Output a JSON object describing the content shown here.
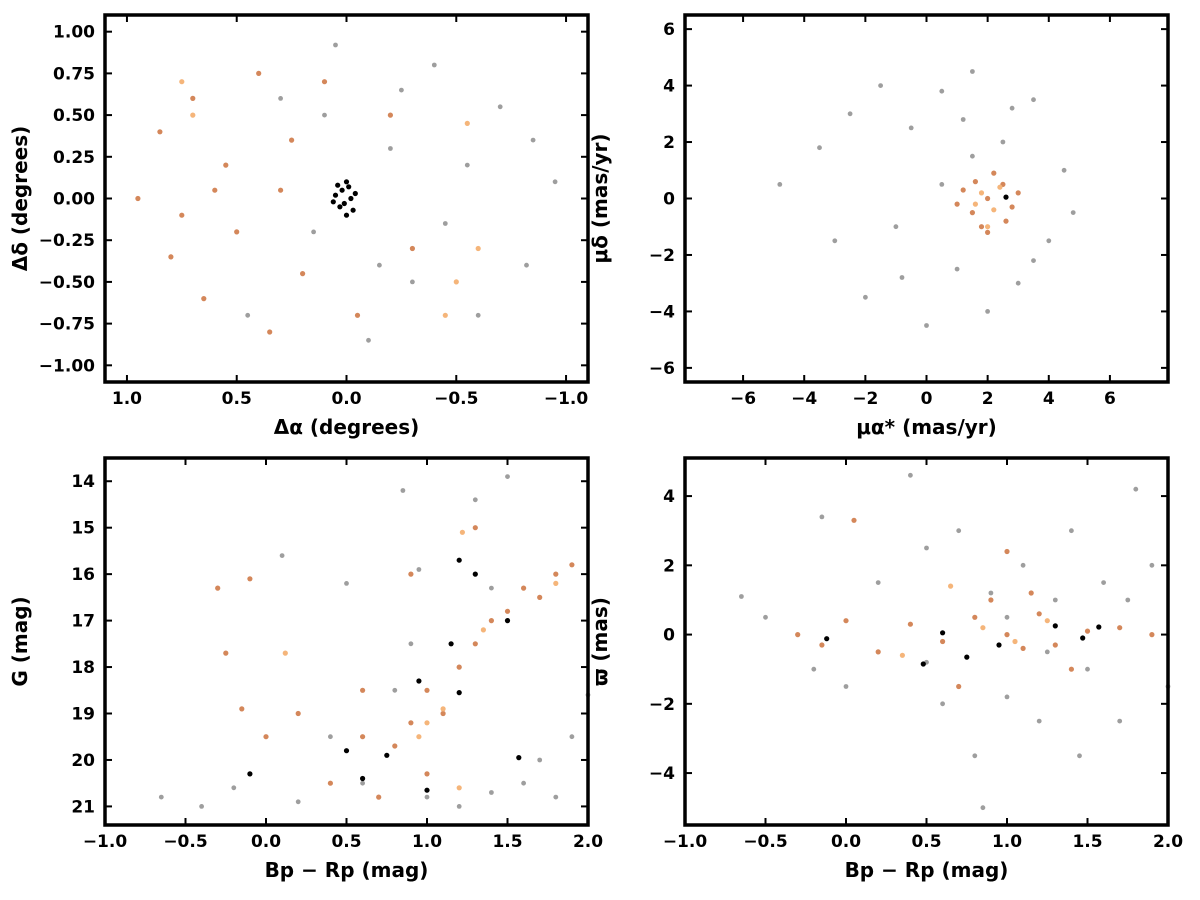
{
  "colors": {
    "field": "#9e9e9e",
    "member": "#d4875a",
    "member_light": "#f5b57a",
    "core": "#000000"
  },
  "chart_data": [
    {
      "type": "scatter",
      "xlabel": "Δα (degrees)",
      "ylabel": "Δδ (degrees)",
      "xlim": [
        1.1,
        -1.1
      ],
      "ylim": [
        -1.1,
        1.1
      ],
      "x_inverted": true,
      "xticks": [
        1.0,
        0.5,
        0.0,
        -0.5,
        -1.0
      ],
      "xtick_labels": [
        "1.0",
        "0.5",
        "0.0",
        "−0.5",
        "−1.0"
      ],
      "yticks": [
        1.0,
        0.75,
        0.5,
        0.25,
        0.0,
        -0.25,
        -0.5,
        -0.75,
        -1.0
      ],
      "ytick_labels": [
        "1.00",
        "0.75",
        "0.50",
        "0.25",
        "0.00",
        "−0.25",
        "−0.50",
        "−0.75",
        "−1.00"
      ],
      "series": [
        {
          "role": "field",
          "points": [
            [
              -0.95,
              0.1
            ],
            [
              -0.82,
              -0.4
            ],
            [
              -0.7,
              0.55
            ],
            [
              -0.6,
              -0.7
            ],
            [
              -0.4,
              0.8
            ],
            [
              -0.3,
              -0.5
            ],
            [
              -0.2,
              0.3
            ],
            [
              -0.1,
              -0.85
            ],
            [
              0.05,
              0.92
            ],
            [
              0.15,
              -0.2
            ],
            [
              0.3,
              0.6
            ],
            [
              0.45,
              -0.7
            ],
            [
              -0.85,
              0.35
            ],
            [
              -0.55,
              0.2
            ],
            [
              -0.45,
              -0.15
            ],
            [
              -0.25,
              0.65
            ],
            [
              0.1,
              0.5
            ],
            [
              -0.15,
              -0.4
            ]
          ]
        },
        {
          "role": "member",
          "points": [
            [
              0.95,
              0.0
            ],
            [
              0.85,
              0.4
            ],
            [
              0.8,
              -0.35
            ],
            [
              0.7,
              0.6
            ],
            [
              0.65,
              -0.6
            ],
            [
              0.55,
              0.2
            ],
            [
              0.5,
              -0.2
            ],
            [
              0.4,
              0.75
            ],
            [
              0.35,
              -0.8
            ],
            [
              0.25,
              0.35
            ],
            [
              0.2,
              -0.45
            ],
            [
              0.1,
              0.7
            ],
            [
              -0.05,
              -0.7
            ],
            [
              -0.2,
              0.5
            ],
            [
              -0.3,
              -0.3
            ],
            [
              0.6,
              0.05
            ],
            [
              0.75,
              -0.1
            ],
            [
              0.3,
              0.05
            ]
          ]
        },
        {
          "role": "member_light",
          "points": [
            [
              0.7,
              0.5
            ],
            [
              -0.55,
              0.45
            ],
            [
              -0.5,
              -0.5
            ],
            [
              -0.6,
              -0.3
            ],
            [
              -0.45,
              -0.7
            ],
            [
              0.75,
              0.7
            ]
          ]
        },
        {
          "role": "core",
          "points": [
            [
              0.0,
              0.1
            ],
            [
              0.02,
              0.05
            ],
            [
              -0.02,
              0.0
            ],
            [
              0.03,
              -0.05
            ],
            [
              0.0,
              -0.1
            ],
            [
              0.05,
              0.02
            ],
            [
              -0.03,
              -0.07
            ],
            [
              0.04,
              0.08
            ],
            [
              -0.04,
              0.03
            ],
            [
              0.01,
              -0.03
            ],
            [
              0.06,
              -0.02
            ],
            [
              -0.01,
              0.07
            ]
          ]
        }
      ]
    },
    {
      "type": "scatter",
      "xlabel": "μα* (mas/yr)",
      "ylabel": "μδ (mas/yr)",
      "xlim": [
        -7.9,
        7.9
      ],
      "ylim": [
        -6.5,
        6.5
      ],
      "xticks": [
        -6,
        -4,
        -2,
        0,
        2,
        4,
        6
      ],
      "xtick_labels": [
        "−6",
        "−4",
        "−2",
        "0",
        "2",
        "4",
        "6"
      ],
      "yticks": [
        6,
        4,
        2,
        0,
        -2,
        -4,
        -6
      ],
      "ytick_labels": [
        "6",
        "4",
        "2",
        "0",
        "−2",
        "−4",
        "−6"
      ],
      "series": [
        {
          "role": "field",
          "points": [
            [
              -4.8,
              0.5
            ],
            [
              -3.5,
              1.8
            ],
            [
              -3.0,
              -1.5
            ],
            [
              -2.5,
              3.0
            ],
            [
              -2.0,
              -3.5
            ],
            [
              -1.5,
              4.0
            ],
            [
              -1.0,
              -1.0
            ],
            [
              -0.5,
              2.5
            ],
            [
              0.0,
              -4.5
            ],
            [
              0.5,
              3.8
            ],
            [
              1.0,
              -2.5
            ],
            [
              1.5,
              4.5
            ],
            [
              2.0,
              -4.0
            ],
            [
              2.5,
              2.0
            ],
            [
              3.0,
              -3.0
            ],
            [
              3.5,
              3.5
            ],
            [
              4.0,
              -1.5
            ],
            [
              4.5,
              1.0
            ],
            [
              4.8,
              -0.5
            ],
            [
              0.5,
              0.5
            ],
            [
              1.5,
              1.5
            ],
            [
              3.5,
              -2.2
            ],
            [
              -0.8,
              -2.8
            ],
            [
              1.2,
              2.8
            ],
            [
              2.8,
              3.2
            ]
          ]
        },
        {
          "role": "member",
          "points": [
            [
              2.0,
              0.0
            ],
            [
              1.5,
              -0.5
            ],
            [
              2.5,
              0.5
            ],
            [
              1.2,
              0.3
            ],
            [
              2.8,
              -0.3
            ],
            [
              1.8,
              -1.0
            ],
            [
              2.2,
              0.9
            ],
            [
              1.6,
              0.6
            ],
            [
              2.6,
              -0.8
            ],
            [
              1.0,
              -0.2
            ],
            [
              3.0,
              0.2
            ],
            [
              2.0,
              -1.2
            ]
          ]
        },
        {
          "role": "member_light",
          "points": [
            [
              1.8,
              0.2
            ],
            [
              2.2,
              -0.4
            ],
            [
              2.0,
              -1.0
            ],
            [
              1.6,
              -0.2
            ],
            [
              2.4,
              0.4
            ]
          ]
        },
        {
          "role": "core",
          "points": [
            [
              2.6,
              0.05
            ]
          ]
        }
      ]
    },
    {
      "type": "scatter",
      "xlabel": "Bp − Rp (mag)",
      "ylabel": "G (mag)",
      "xlim": [
        -1.0,
        2.0
      ],
      "ylim": [
        21.4,
        13.5
      ],
      "y_inverted": true,
      "xticks": [
        -1.0,
        -0.5,
        0.0,
        0.5,
        1.0,
        1.5,
        2.0
      ],
      "xtick_labels": [
        "−1.0",
        "−0.5",
        "0.0",
        "0.5",
        "1.0",
        "1.5",
        "2.0"
      ],
      "yticks": [
        21,
        20,
        19,
        18,
        17,
        16,
        15,
        14
      ],
      "ytick_labels": [
        "21",
        "20",
        "19",
        "18",
        "17",
        "16",
        "15",
        "14"
      ],
      "series": [
        {
          "role": "field",
          "points": [
            [
              -0.65,
              20.8
            ],
            [
              -0.4,
              21.0
            ],
            [
              -0.2,
              20.6
            ],
            [
              0.1,
              15.6
            ],
            [
              0.2,
              20.9
            ],
            [
              0.4,
              19.5
            ],
            [
              0.6,
              20.5
            ],
            [
              0.8,
              18.5
            ],
            [
              0.9,
              17.5
            ],
            [
              1.0,
              20.8
            ],
            [
              1.1,
              19.0
            ],
            [
              1.2,
              18.0
            ],
            [
              1.3,
              14.4
            ],
            [
              1.4,
              20.7
            ],
            [
              1.5,
              13.9
            ],
            [
              1.6,
              20.5
            ],
            [
              1.7,
              20.0
            ],
            [
              1.8,
              20.8
            ],
            [
              1.9,
              19.5
            ],
            [
              2.0,
              18.6
            ],
            [
              0.5,
              16.2
            ],
            [
              0.85,
              14.2
            ],
            [
              0.95,
              15.9
            ],
            [
              1.4,
              16.3
            ],
            [
              1.2,
              21.0
            ]
          ]
        },
        {
          "role": "member",
          "points": [
            [
              -0.3,
              16.3
            ],
            [
              -0.25,
              17.7
            ],
            [
              -0.1,
              16.1
            ],
            [
              -0.15,
              18.9
            ],
            [
              0.0,
              19.5
            ],
            [
              0.2,
              19.0
            ],
            [
              0.4,
              20.5
            ],
            [
              0.6,
              18.5
            ],
            [
              0.7,
              20.8
            ],
            [
              0.8,
              19.7
            ],
            [
              0.9,
              19.2
            ],
            [
              1.0,
              18.5
            ],
            [
              1.1,
              19.0
            ],
            [
              1.2,
              18.0
            ],
            [
              1.3,
              17.5
            ],
            [
              1.4,
              17.0
            ],
            [
              1.5,
              16.8
            ],
            [
              1.6,
              16.3
            ],
            [
              1.7,
              16.5
            ],
            [
              1.8,
              16.0
            ],
            [
              1.9,
              15.8
            ],
            [
              1.3,
              15.0
            ],
            [
              0.9,
              16.0
            ],
            [
              0.6,
              19.5
            ],
            [
              1.0,
              20.3
            ]
          ]
        },
        {
          "role": "member_light",
          "points": [
            [
              1.0,
              19.2
            ],
            [
              1.1,
              18.9
            ],
            [
              1.2,
              20.6
            ],
            [
              1.35,
              17.2
            ],
            [
              0.95,
              19.5
            ],
            [
              1.8,
              16.2
            ],
            [
              1.22,
              15.1
            ],
            [
              0.12,
              17.7
            ]
          ]
        },
        {
          "role": "core",
          "points": [
            [
              -0.1,
              20.3
            ],
            [
              0.5,
              19.8
            ],
            [
              0.6,
              20.4
            ],
            [
              0.75,
              19.9
            ],
            [
              1.0,
              20.65
            ],
            [
              0.95,
              18.3
            ],
            [
              1.15,
              17.5
            ],
            [
              1.2,
              18.55
            ],
            [
              1.2,
              15.7
            ],
            [
              1.5,
              17.0
            ],
            [
              1.57,
              19.95
            ],
            [
              1.3,
              16.0
            ]
          ]
        }
      ]
    },
    {
      "type": "scatter",
      "xlabel": "Bp − Rp (mag)",
      "ylabel": "ϖ (mas)",
      "xlim": [
        -1.0,
        2.0
      ],
      "ylim": [
        -5.5,
        5.1
      ],
      "xticks": [
        -1.0,
        -0.5,
        0.0,
        0.5,
        1.0,
        1.5,
        2.0
      ],
      "xtick_labels": [
        "−1.0",
        "−0.5",
        "0.0",
        "0.5",
        "1.0",
        "1.5",
        "2.0"
      ],
      "yticks": [
        4,
        2,
        0,
        -2,
        -4
      ],
      "ytick_labels": [
        "4",
        "2",
        "0",
        "−2",
        "−4"
      ],
      "series": [
        {
          "role": "field",
          "points": [
            [
              -0.65,
              1.1
            ],
            [
              -0.5,
              0.5
            ],
            [
              -0.2,
              -1.0
            ],
            [
              -0.15,
              3.4
            ],
            [
              0.0,
              -1.5
            ],
            [
              0.2,
              1.5
            ],
            [
              0.4,
              4.6
            ],
            [
              0.5,
              2.5
            ],
            [
              0.6,
              -2.0
            ],
            [
              0.7,
              3.0
            ],
            [
              0.8,
              -3.5
            ],
            [
              0.9,
              1.2
            ],
            [
              1.0,
              -1.8
            ],
            [
              1.1,
              2.0
            ],
            [
              1.2,
              -2.5
            ],
            [
              1.3,
              1.0
            ],
            [
              1.4,
              3.0
            ],
            [
              1.5,
              -1.0
            ],
            [
              1.6,
              1.5
            ],
            [
              1.7,
              -2.5
            ],
            [
              1.8,
              4.2
            ],
            [
              1.9,
              2.0
            ],
            [
              2.0,
              -1.5
            ],
            [
              0.85,
              -5.0
            ],
            [
              1.45,
              -3.5
            ],
            [
              0.5,
              -0.8
            ],
            [
              1.0,
              0.5
            ],
            [
              1.25,
              -0.5
            ],
            [
              1.75,
              1.0
            ]
          ]
        },
        {
          "role": "member",
          "points": [
            [
              -0.3,
              0.0
            ],
            [
              -0.15,
              -0.3
            ],
            [
              0.0,
              0.4
            ],
            [
              0.05,
              3.3
            ],
            [
              0.2,
              -0.5
            ],
            [
              0.4,
              0.3
            ],
            [
              0.6,
              -0.2
            ],
            [
              0.8,
              0.5
            ],
            [
              1.0,
              0.0
            ],
            [
              1.1,
              -0.4
            ],
            [
              1.2,
              0.6
            ],
            [
              1.3,
              -0.3
            ],
            [
              1.5,
              0.1
            ],
            [
              1.7,
              0.2
            ],
            [
              1.9,
              0.0
            ],
            [
              1.0,
              2.4
            ],
            [
              0.7,
              -1.5
            ],
            [
              0.9,
              1.0
            ],
            [
              1.15,
              1.2
            ],
            [
              1.4,
              -1.0
            ]
          ]
        },
        {
          "role": "member_light",
          "points": [
            [
              0.35,
              -0.6
            ],
            [
              0.85,
              0.2
            ],
            [
              1.05,
              -0.2
            ],
            [
              0.65,
              1.4
            ],
            [
              1.25,
              0.4
            ]
          ]
        },
        {
          "role": "core",
          "points": [
            [
              -0.12,
              -0.12
            ],
            [
              0.48,
              -0.85
            ],
            [
              0.6,
              0.05
            ],
            [
              0.75,
              -0.65
            ],
            [
              0.95,
              -0.3
            ],
            [
              1.3,
              0.25
            ],
            [
              1.47,
              -0.1
            ],
            [
              1.57,
              0.22
            ]
          ]
        }
      ]
    }
  ]
}
